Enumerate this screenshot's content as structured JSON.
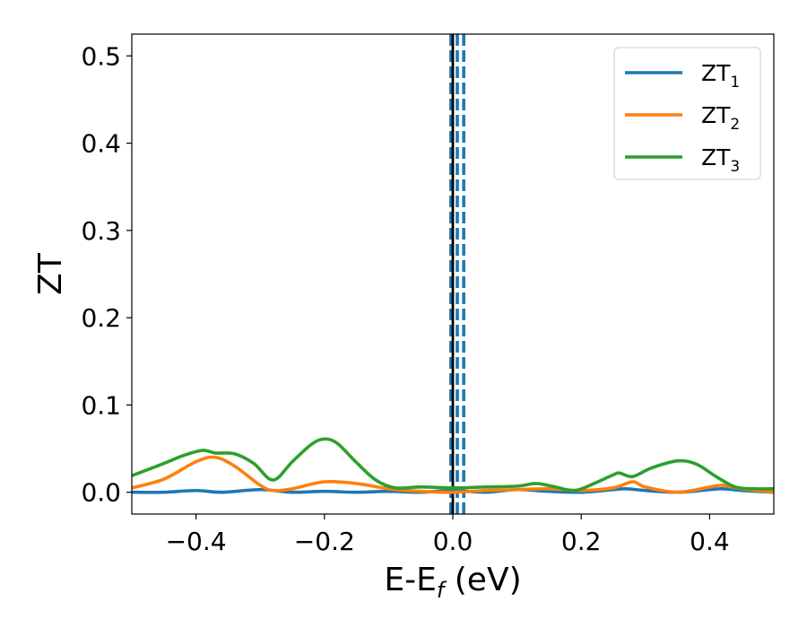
{
  "chart_data": {
    "type": "line",
    "xlabel": "E-E",
    "xlabel_sub": "f",
    "xlabel_unit": " (eV)",
    "ylabel": "ZT",
    "xlim": [
      -0.5,
      0.5
    ],
    "ylim": [
      -0.025,
      0.525
    ],
    "xticks": [
      -0.4,
      -0.2,
      0.0,
      0.2,
      0.4
    ],
    "xtick_labels": [
      "−0.4",
      "−0.2",
      "0.0",
      "0.2",
      "0.4"
    ],
    "yticks": [
      0.0,
      0.1,
      0.2,
      0.3,
      0.4,
      0.5
    ],
    "ytick_labels": [
      "0.0",
      "0.1",
      "0.2",
      "0.3",
      "0.4",
      "0.5"
    ],
    "grid": false,
    "legend_position": "top-right",
    "vlines": [
      {
        "x": -0.003,
        "style": "dashed",
        "color": "#1f77b4"
      },
      {
        "x": 0.0,
        "style": "solid",
        "color": "#000000"
      },
      {
        "x": 0.007,
        "style": "dashed",
        "color": "#1f77b4"
      },
      {
        "x": 0.017,
        "style": "dashed",
        "color": "#1f77b4"
      }
    ],
    "series": [
      {
        "name": "ZT",
        "name_sub": "1",
        "color": "#1f77b4",
        "x": [
          -0.5,
          -0.45,
          -0.4,
          -0.36,
          -0.3,
          -0.25,
          -0.2,
          -0.15,
          -0.1,
          -0.05,
          0.0,
          0.05,
          0.1,
          0.15,
          0.2,
          0.25,
          0.27,
          0.3,
          0.35,
          0.4,
          0.42,
          0.45,
          0.5
        ],
        "values": [
          0.0,
          0.0,
          0.002,
          0.0,
          0.003,
          0.0,
          0.001,
          0.0,
          0.001,
          0.0,
          0.002,
          0.0,
          0.003,
          0.001,
          0.0,
          0.003,
          0.004,
          0.002,
          0.0,
          0.003,
          0.004,
          0.002,
          0.0
        ]
      },
      {
        "name": "ZT",
        "name_sub": "2",
        "color": "#ff7f0e",
        "x": [
          -0.5,
          -0.45,
          -0.4,
          -0.37,
          -0.34,
          -0.3,
          -0.28,
          -0.25,
          -0.2,
          -0.15,
          -0.1,
          -0.05,
          0.0,
          0.05,
          0.1,
          0.15,
          0.2,
          0.25,
          0.28,
          0.3,
          0.35,
          0.4,
          0.42,
          0.45,
          0.5
        ],
        "values": [
          0.005,
          0.015,
          0.035,
          0.04,
          0.03,
          0.008,
          0.002,
          0.004,
          0.012,
          0.01,
          0.004,
          0.001,
          0.0,
          0.002,
          0.003,
          0.004,
          0.002,
          0.005,
          0.012,
          0.006,
          0.0,
          0.006,
          0.008,
          0.004,
          0.0
        ]
      },
      {
        "name": "ZT",
        "name_sub": "3",
        "color": "#2ca02c",
        "x": [
          -0.5,
          -0.45,
          -0.42,
          -0.39,
          -0.37,
          -0.34,
          -0.31,
          -0.28,
          -0.25,
          -0.22,
          -0.2,
          -0.18,
          -0.15,
          -0.12,
          -0.09,
          -0.05,
          0.0,
          0.05,
          0.1,
          0.13,
          0.16,
          0.19,
          0.22,
          0.25,
          0.26,
          0.28,
          0.31,
          0.35,
          0.38,
          0.41,
          0.44,
          0.47,
          0.5
        ],
        "values": [
          0.019,
          0.033,
          0.042,
          0.048,
          0.045,
          0.044,
          0.033,
          0.014,
          0.035,
          0.055,
          0.061,
          0.056,
          0.034,
          0.014,
          0.005,
          0.006,
          0.005,
          0.006,
          0.007,
          0.01,
          0.006,
          0.002,
          0.01,
          0.02,
          0.022,
          0.018,
          0.028,
          0.036,
          0.032,
          0.018,
          0.006,
          0.004,
          0.004
        ]
      }
    ]
  }
}
